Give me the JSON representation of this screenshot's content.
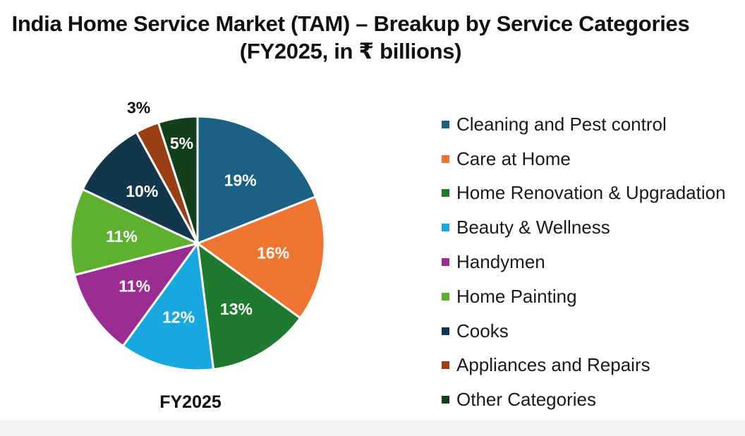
{
  "chart_data": {
    "type": "pie",
    "title": "India Home Service Market (TAM) – Breakup by Service Categories",
    "subtitle": "(FY2025, in ₹ billions)",
    "xlabel": "FY2025",
    "legend_position": "right",
    "slices": [
      {
        "name": "Cleaning and Pest control",
        "value": 19,
        "label": "19%",
        "color": "#1a6185"
      },
      {
        "name": "Care at Home",
        "value": 16,
        "label": "16%",
        "color": "#ed7431"
      },
      {
        "name": "Home Renovation & Upgradation",
        "value": 13,
        "label": "13%",
        "color": "#1e7a2e"
      },
      {
        "name": "Beauty & Wellness",
        "value": 12,
        "label": "12%",
        "color": "#16a8df"
      },
      {
        "name": "Handymen",
        "value": 11,
        "label": "11%",
        "color": "#9b2c92"
      },
      {
        "name": "Home Painting",
        "value": 11,
        "label": "11%",
        "color": "#5db12f"
      },
      {
        "name": "Cooks",
        "value": 10,
        "label": "10%",
        "color": "#12374c"
      },
      {
        "name": "Appliances and Repairs",
        "value": 3,
        "label": "3%",
        "color": "#9a3e14"
      },
      {
        "name": "Other Categories",
        "value": 5,
        "label": "5%",
        "color": "#13401b"
      }
    ]
  }
}
